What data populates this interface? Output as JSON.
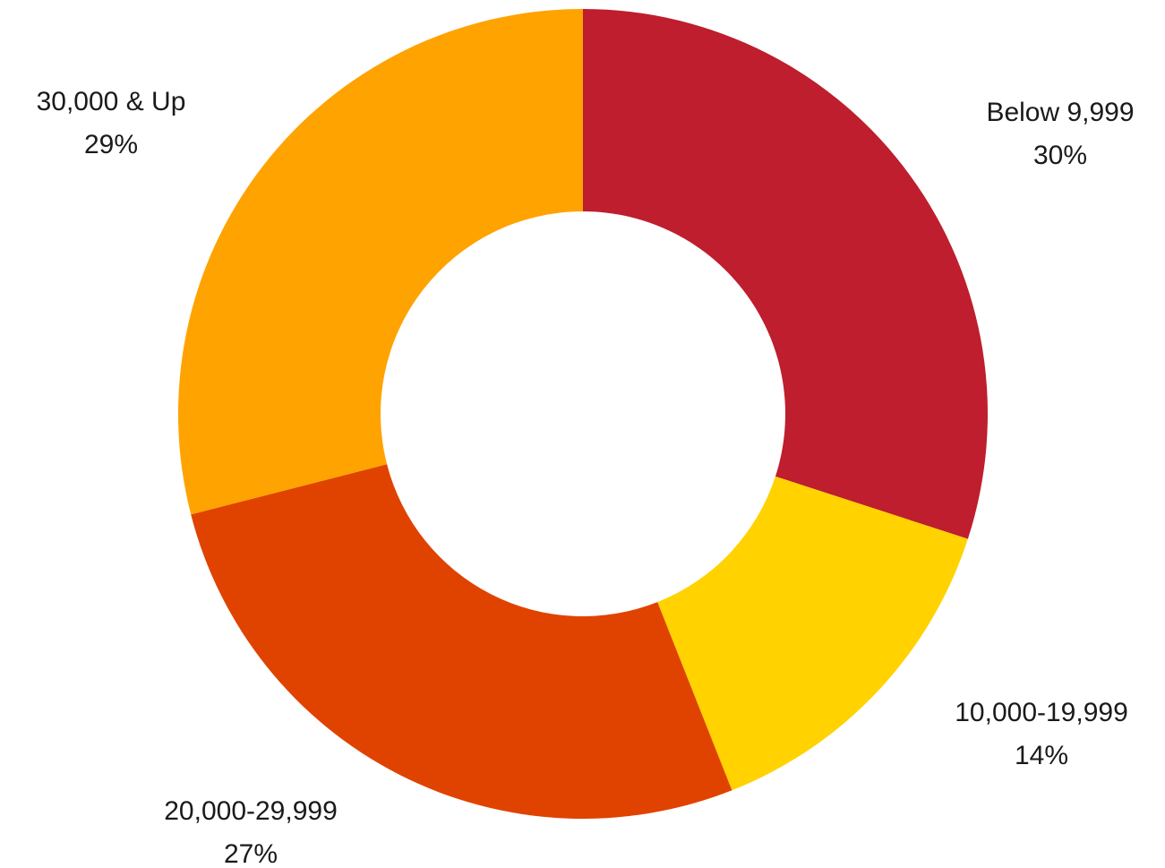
{
  "chart_data": {
    "type": "pie",
    "variant": "donut",
    "slices": [
      {
        "label": "Below 9,999",
        "value": 30,
        "display": "30%",
        "color": "#be1e2d"
      },
      {
        "label": "10,000-19,999",
        "value": 14,
        "display": "14%",
        "color": "#ffd200"
      },
      {
        "label": "20,000-29,999",
        "value": 27,
        "display": "27%",
        "color": "#e04300"
      },
      {
        "label": "30,000 & Up",
        "value": 29,
        "display": "29%",
        "color": "#ffa300"
      }
    ],
    "start_angle": "12 o'clock",
    "direction": "clockwise",
    "legend": "none",
    "labels": "outside"
  }
}
